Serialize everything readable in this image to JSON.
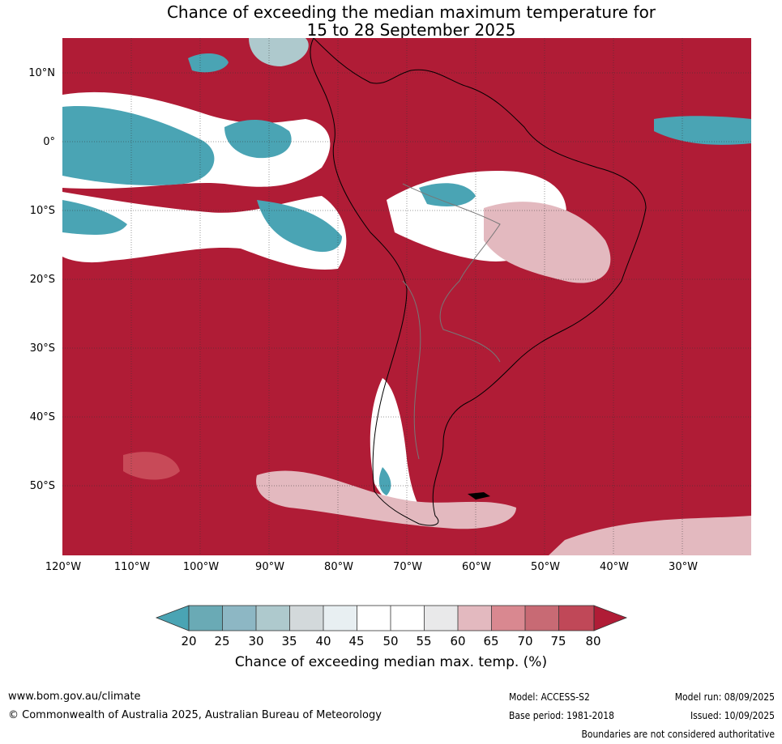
{
  "title": {
    "line1": "Chance of exceeding the median maximum temperature for",
    "line2": "15 to 28 September 2025"
  },
  "map": {
    "lat_labels": [
      "10°N",
      "0°",
      "10°S",
      "20°S",
      "30°S",
      "40°S",
      "50°S"
    ],
    "lon_labels": [
      "120°W",
      "110°W",
      "100°W",
      "90°W",
      "80°W",
      "70°W",
      "60°W",
      "50°W",
      "40°W",
      "30°W"
    ],
    "colors": {
      "deep_red": "#b01c36",
      "red": "#c84a58",
      "mid_red": "#d98890",
      "pink": "#e3b9bf",
      "white": "#ffffff",
      "grey": "#e9e9ea",
      "blue_grey": "#a9c6cc",
      "teal": "#4aa4b4"
    }
  },
  "colorbar": {
    "ticks": [
      "20",
      "25",
      "30",
      "35",
      "40",
      "45",
      "50",
      "55",
      "60",
      "65",
      "70",
      "75",
      "80"
    ],
    "label": "Chance of exceeding median max. temp. (%)",
    "colors": [
      "#4aa4b4",
      "#6aaab5",
      "#8db7c4",
      "#aec9cd",
      "#d3d9db",
      "#e8eff2",
      "#ffffff",
      "#ffffff",
      "#e9e9ea",
      "#e3b9bf",
      "#d98890",
      "#c86a74",
      "#c04858",
      "#b01c36"
    ]
  },
  "footer": {
    "website": "www.bom.gov.au/climate",
    "copyright": "© Commonwealth of Australia 2025, Australian Bureau of Meteorology",
    "model": "Model: ACCESS-S2",
    "base_period": "Base period: 1981-2018",
    "model_run": "Model run: 08/09/2025",
    "issued": "Issued: 10/09/2025",
    "disclaimer": "Boundaries are not considered authoritative"
  }
}
